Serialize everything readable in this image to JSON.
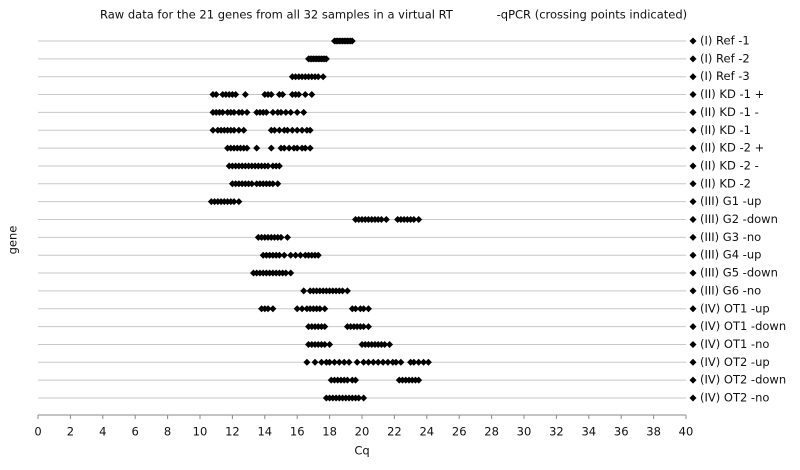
{
  "chart_data": {
    "type": "scatter",
    "title": "Raw data for the 21 genes from all 32 samples in a virtual RT            -qPCR (crossing points indicated)",
    "x_label": "Cq",
    "y_label": "gene",
    "color": "#000000",
    "grid": true,
    "xlim": [
      0,
      40
    ],
    "xticks": [
      0,
      2,
      4,
      6,
      8,
      10,
      12,
      14,
      16,
      18,
      20,
      22,
      24,
      26,
      28,
      30,
      32,
      34,
      36,
      38,
      40
    ],
    "categories": [
      "(I) Ref -1",
      "(I) Ref -2",
      "(I) Ref -3",
      "(II) KD -1 +",
      "(II) KD -1 -",
      "(II) KD -1",
      "(II) KD -2 +",
      "(II) KD -2 -",
      "(II) KD -2",
      "(III) G1 -up",
      "(III) G2 -down",
      "(III) G3 -no",
      "(III) G4 -up",
      "(III) G5 -down",
      "(III) G6 -no",
      "(IV) OT1 -up",
      "(IV) OT1 -down",
      "(IV) OT1 -no",
      "(IV) OT2 -up",
      "(IV) OT2 -down",
      "(IV) OT2 -no"
    ],
    "values": [
      [
        18.3,
        18.4,
        18.5,
        18.6,
        18.7,
        18.8,
        18.9,
        19.0,
        19.1,
        19.2,
        19.3,
        19.4
      ],
      [
        16.7,
        16.8,
        16.9,
        17.0,
        17.1,
        17.2,
        17.3,
        17.4,
        17.5,
        17.6,
        17.7,
        17.8
      ],
      [
        15.7,
        15.9,
        16.1,
        16.3,
        16.5,
        16.7,
        16.9,
        17.1,
        17.3,
        17.6
      ],
      [
        10.8,
        11.0,
        11.4,
        11.6,
        11.8,
        12.0,
        12.2,
        12.8,
        14.0,
        14.2,
        14.4,
        14.9,
        15.1,
        15.7,
        15.9,
        16.1,
        16.5,
        16.9
      ],
      [
        10.8,
        11.0,
        11.2,
        11.4,
        11.7,
        11.9,
        12.1,
        12.4,
        12.6,
        12.9,
        13.5,
        13.7,
        13.9,
        14.1,
        14.5,
        14.8,
        15.0,
        15.3,
        15.6,
        16.0,
        16.4
      ],
      [
        10.8,
        11.1,
        11.3,
        11.5,
        11.7,
        11.9,
        12.1,
        12.4,
        12.7,
        14.4,
        14.6,
        14.9,
        15.2,
        15.4,
        15.7,
        16.0,
        16.3,
        16.6,
        16.8
      ],
      [
        11.7,
        11.9,
        12.1,
        12.3,
        12.5,
        12.7,
        12.9,
        13.5,
        14.4,
        15.0,
        15.2,
        15.5,
        15.8,
        16.0,
        16.3,
        16.5,
        16.8
      ],
      [
        11.8,
        12.0,
        12.2,
        12.4,
        12.6,
        12.8,
        13.0,
        13.2,
        13.4,
        13.6,
        13.8,
        14.0,
        14.2,
        14.5,
        14.7,
        14.9
      ],
      [
        12.0,
        12.2,
        12.4,
        12.6,
        12.8,
        13.0,
        13.2,
        13.5,
        13.7,
        13.9,
        14.1,
        14.3,
        14.5,
        14.8
      ],
      [
        10.7,
        10.9,
        11.1,
        11.3,
        11.5,
        11.7,
        11.9,
        12.1,
        12.4
      ],
      [
        19.6,
        19.8,
        20.0,
        20.2,
        20.4,
        20.6,
        20.8,
        21.0,
        21.2,
        21.5,
        22.2,
        22.4,
        22.6,
        22.8,
        23.0,
        23.2,
        23.5
      ],
      [
        13.6,
        13.8,
        14.0,
        14.2,
        14.4,
        14.6,
        14.8,
        15.0,
        15.4
      ],
      [
        13.9,
        14.1,
        14.3,
        14.5,
        14.7,
        14.9,
        15.2,
        15.6,
        15.9,
        16.2,
        16.5,
        16.7,
        16.9,
        17.1,
        17.3
      ],
      [
        13.3,
        13.5,
        13.7,
        13.9,
        14.1,
        14.3,
        14.5,
        14.7,
        14.9,
        15.1,
        15.3,
        15.6
      ],
      [
        16.4,
        16.8,
        17.0,
        17.2,
        17.4,
        17.6,
        17.8,
        18.0,
        18.2,
        18.4,
        18.6,
        18.8,
        19.1
      ],
      [
        13.8,
        14.0,
        14.2,
        14.5,
        16.0,
        16.3,
        16.6,
        16.8,
        17.0,
        17.2,
        17.4,
        17.7,
        19.4,
        19.6,
        19.9,
        20.1,
        20.4
      ],
      [
        16.7,
        16.9,
        17.1,
        17.3,
        17.5,
        17.7,
        19.1,
        19.3,
        19.5,
        19.7,
        19.9,
        20.1,
        20.4
      ],
      [
        16.7,
        16.9,
        17.1,
        17.3,
        17.5,
        17.7,
        18.0,
        20.0,
        20.2,
        20.4,
        20.6,
        20.8,
        21.0,
        21.2,
        21.4,
        21.7
      ],
      [
        16.6,
        17.1,
        17.5,
        17.8,
        18.0,
        18.3,
        18.6,
        18.9,
        19.2,
        19.7,
        20.1,
        20.4,
        20.7,
        21.0,
        21.3,
        21.6,
        21.9,
        22.1,
        22.4,
        23.0,
        23.2,
        23.5,
        23.8,
        24.1
      ],
      [
        18.1,
        18.3,
        18.5,
        18.7,
        18.9,
        19.1,
        19.4,
        19.6,
        22.3,
        22.5,
        22.7,
        22.9,
        23.1,
        23.3,
        23.5
      ],
      [
        17.8,
        18.0,
        18.2,
        18.4,
        18.6,
        18.8,
        19.0,
        19.2,
        19.4,
        19.6,
        19.8,
        20.1
      ]
    ]
  }
}
